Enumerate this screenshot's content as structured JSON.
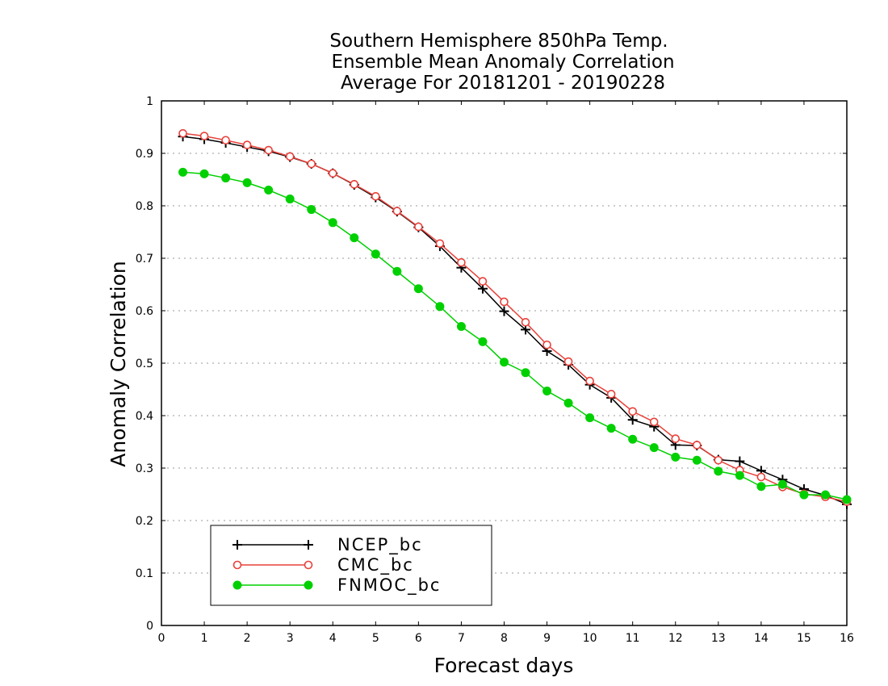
{
  "chart_data": {
    "type": "line",
    "title": [
      "Southern Hemisphere 850hPa Temp.",
      "Ensemble Mean Anomaly Correlation",
      "Average For 20181201 - 20190228"
    ],
    "xlabel": "Forecast days",
    "ylabel": "Anomaly Correlation",
    "xlim": [
      0,
      16
    ],
    "ylim": [
      0,
      1
    ],
    "xticks": [
      "0",
      "1",
      "2",
      "3",
      "4",
      "5",
      "6",
      "7",
      "8",
      "9",
      "10",
      "11",
      "12",
      "13",
      "14",
      "15",
      "16"
    ],
    "yticks": [
      "0",
      "0.1",
      "0.2",
      "0.3",
      "0.4",
      "0.5",
      "0.6",
      "0.7",
      "0.8",
      "0.9",
      "1"
    ],
    "grid": "dotted horizontal",
    "legend_position": "bottom-left",
    "x": [
      0.5,
      1,
      1.5,
      2,
      2.5,
      3,
      3.5,
      4,
      4.5,
      5,
      5.5,
      6,
      6.5,
      7,
      7.5,
      8,
      8.5,
      9,
      9.5,
      10,
      10.5,
      11,
      11.5,
      12,
      12.5,
      13,
      13.5,
      14,
      14.5,
      15,
      15.5,
      16
    ],
    "series": [
      {
        "name": "NCEP_bc",
        "color": "#000000",
        "marker": "plus",
        "values": [
          0.932,
          0.927,
          0.92,
          0.912,
          0.904,
          0.893,
          0.88,
          0.862,
          0.84,
          0.816,
          0.789,
          0.759,
          0.723,
          0.682,
          0.642,
          0.599,
          0.564,
          0.523,
          0.497,
          0.459,
          0.434,
          0.392,
          0.379,
          0.344,
          0.343,
          0.316,
          0.313,
          0.295,
          0.278,
          0.26,
          0.248,
          0.231
        ]
      },
      {
        "name": "CMC_bc",
        "color": "#e8413a",
        "marker": "open-circle",
        "values": [
          0.938,
          0.933,
          0.925,
          0.916,
          0.906,
          0.894,
          0.88,
          0.862,
          0.841,
          0.818,
          0.79,
          0.76,
          0.728,
          0.692,
          0.656,
          0.617,
          0.578,
          0.535,
          0.503,
          0.466,
          0.441,
          0.408,
          0.388,
          0.356,
          0.344,
          0.315,
          0.296,
          0.283,
          0.264,
          0.251,
          0.245,
          0.236
        ]
      },
      {
        "name": "FNMOC_bc",
        "color": "#00d000",
        "marker": "filled-circle",
        "values": [
          0.864,
          0.861,
          0.853,
          0.844,
          0.83,
          0.813,
          0.793,
          0.768,
          0.739,
          0.708,
          0.675,
          0.642,
          0.608,
          0.57,
          0.541,
          0.502,
          0.482,
          0.447,
          0.424,
          0.396,
          0.376,
          0.355,
          0.339,
          0.321,
          0.315,
          0.294,
          0.286,
          0.265,
          0.269,
          0.249,
          0.249,
          0.24
        ]
      }
    ]
  }
}
